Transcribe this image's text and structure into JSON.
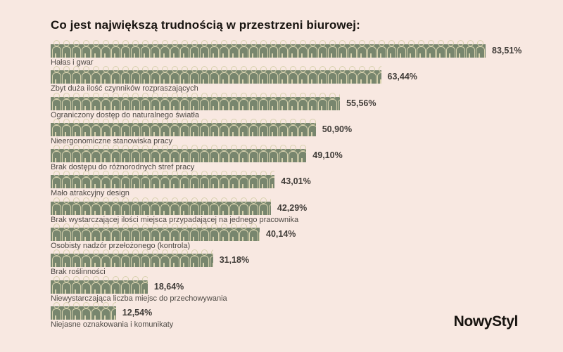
{
  "title": "Co jest największą trudnością w przestrzeni biurowej:",
  "logo": "NowyStyl",
  "colors": {
    "background": "#f8e8e1",
    "bar": "#78866e",
    "icon_outline": "#d8d2ae",
    "title_text": "#17130f",
    "value_text": "#403c38",
    "category_text": "#4e4a45"
  },
  "chart_data": {
    "type": "bar",
    "orientation": "horizontal",
    "style": "pictogram of repeated person icons",
    "title": "Co jest największą trudnością w przestrzeni biurowej:",
    "unit": "%",
    "xlim": [
      0,
      100
    ],
    "legend": "none",
    "grid": false,
    "categories": [
      "Hałas i gwar",
      "Zbyt duża ilość czynników rozpraszających",
      "Ograniczony dostęp do naturalnego światła",
      "Nieergonomiczne stanowiska pracy",
      "Brak dostępu do różnorodnych stref pracy",
      "Mało atrakcyjny design",
      "Brak wystarczającej ilości miejsca przypadającej na jednego pracownika",
      "Osobisty nadzór przełożonego (kontrola)",
      "Brak roślinności",
      "Niewystarczająca liczba miejsc do przechowywania",
      "Niejasne oznakowania i komunikaty"
    ],
    "values": [
      83.51,
      63.44,
      55.56,
      50.9,
      49.1,
      43.01,
      42.29,
      40.14,
      31.18,
      18.64,
      12.54
    ],
    "value_labels": [
      "83,51%",
      "63,44%",
      "55,56%",
      "50,90%",
      "49,10%",
      "43,01%",
      "42,29%",
      "40,14%",
      "31,18%",
      "18,64%",
      "12,54%"
    ]
  }
}
